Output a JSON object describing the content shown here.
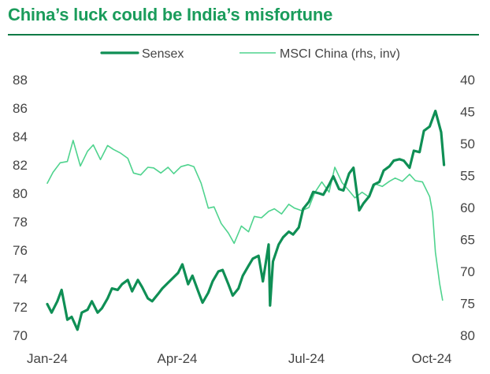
{
  "chart_data": {
    "type": "line",
    "title": "China’s luck could be India’s misfortune",
    "colors": {
      "title": "#1a9c5b",
      "rule": "#0f7a45",
      "sensex": "#0f8f55",
      "msci": "#4fd38e",
      "text": "#444444"
    },
    "x_ticks": [
      "Jan-24",
      "Apr-24",
      "Jul-24",
      "Oct-24"
    ],
    "y_left": {
      "ticks": [
        "70",
        "72",
        "74",
        "76",
        "78",
        "80",
        "82",
        "84",
        "86",
        "88"
      ],
      "ylim": [
        70,
        88
      ]
    },
    "y_right": {
      "ticks": [
        "40",
        "45",
        "50",
        "55",
        "60",
        "65",
        "70",
        "75",
        "80"
      ],
      "ylim": [
        40,
        80
      ],
      "inverted": true
    },
    "legend_position": "top-right",
    "series": [
      {
        "name": "Sensex",
        "axis": "left",
        "x": [
          "2024-01-01",
          "2024-01-04",
          "2024-01-08",
          "2024-01-11",
          "2024-01-15",
          "2024-01-18",
          "2024-01-22",
          "2024-01-25",
          "2024-01-29",
          "2024-02-01",
          "2024-02-05",
          "2024-02-08",
          "2024-02-12",
          "2024-02-15",
          "2024-02-19",
          "2024-02-22",
          "2024-02-26",
          "2024-02-29",
          "2024-03-04",
          "2024-03-07",
          "2024-03-11",
          "2024-03-14",
          "2024-03-18",
          "2024-03-21",
          "2024-03-25",
          "2024-03-28",
          "2024-04-01",
          "2024-04-04",
          "2024-04-08",
          "2024-04-11",
          "2024-04-15",
          "2024-04-18",
          "2024-04-22",
          "2024-04-25",
          "2024-04-29",
          "2024-05-02",
          "2024-05-06",
          "2024-05-09",
          "2024-05-13",
          "2024-05-16",
          "2024-05-20",
          "2024-05-23",
          "2024-05-27",
          "2024-05-30",
          "2024-06-03",
          "2024-06-04",
          "2024-06-06",
          "2024-06-10",
          "2024-06-13",
          "2024-06-17",
          "2024-06-20",
          "2024-06-24",
          "2024-06-27",
          "2024-07-01",
          "2024-07-04",
          "2024-07-08",
          "2024-07-11",
          "2024-07-15",
          "2024-07-18",
          "2024-07-22",
          "2024-07-25",
          "2024-07-29",
          "2024-08-01",
          "2024-08-05",
          "2024-08-08",
          "2024-08-12",
          "2024-08-15",
          "2024-08-19",
          "2024-08-22",
          "2024-08-26",
          "2024-08-29",
          "2024-09-02",
          "2024-09-05",
          "2024-09-09",
          "2024-09-12",
          "2024-09-16",
          "2024-09-19",
          "2024-09-23",
          "2024-09-27",
          "2024-10-01",
          "2024-10-03"
        ],
        "values": [
          72.2,
          71.6,
          72.4,
          73.2,
          71.1,
          71.3,
          70.4,
          71.6,
          71.8,
          72.4,
          71.6,
          71.9,
          72.6,
          73.3,
          73.2,
          73.6,
          73.9,
          73.1,
          73.9,
          73.4,
          72.6,
          72.4,
          72.9,
          73.3,
          73.7,
          74.0,
          74.4,
          75.0,
          73.6,
          74.2,
          73.1,
          72.3,
          73.0,
          73.8,
          74.5,
          74.6,
          73.6,
          72.8,
          73.3,
          74.2,
          74.9,
          75.4,
          75.6,
          73.8,
          76.4,
          72.1,
          75.2,
          76.4,
          76.9,
          77.3,
          77.1,
          77.6,
          78.9,
          79.4,
          80.1,
          80.0,
          79.9,
          80.6,
          81.2,
          80.3,
          80.2,
          81.4,
          81.8,
          78.8,
          79.3,
          79.8,
          80.6,
          80.8,
          81.6,
          81.9,
          82.3,
          82.4,
          82.3,
          81.8,
          83.0,
          82.9,
          84.4,
          84.7,
          85.8,
          84.3,
          82.0
        ]
      },
      {
        "name": "MSCI China (rhs, inv)",
        "axis": "right",
        "x": [
          "2024-01-01",
          "2024-01-05",
          "2024-01-10",
          "2024-01-15",
          "2024-01-19",
          "2024-01-24",
          "2024-01-29",
          "2024-02-02",
          "2024-02-07",
          "2024-02-12",
          "2024-02-16",
          "2024-02-21",
          "2024-02-26",
          "2024-03-01",
          "2024-03-06",
          "2024-03-11",
          "2024-03-15",
          "2024-03-20",
          "2024-03-25",
          "2024-03-29",
          "2024-04-03",
          "2024-04-08",
          "2024-04-12",
          "2024-04-17",
          "2024-04-22",
          "2024-04-26",
          "2024-05-01",
          "2024-05-06",
          "2024-05-10",
          "2024-05-15",
          "2024-05-20",
          "2024-05-24",
          "2024-05-29",
          "2024-06-03",
          "2024-06-07",
          "2024-06-12",
          "2024-06-17",
          "2024-06-21",
          "2024-06-26",
          "2024-07-01",
          "2024-07-05",
          "2024-07-10",
          "2024-07-15",
          "2024-07-19",
          "2024-07-24",
          "2024-07-29",
          "2024-08-02",
          "2024-08-07",
          "2024-08-12",
          "2024-08-16",
          "2024-08-21",
          "2024-08-26",
          "2024-08-30",
          "2024-09-04",
          "2024-09-09",
          "2024-09-13",
          "2024-09-18",
          "2024-09-23",
          "2024-09-25",
          "2024-09-27",
          "2024-09-30",
          "2024-10-02"
        ],
        "values": [
          56.2,
          54.5,
          53.0,
          52.8,
          49.5,
          53.5,
          51.2,
          50.2,
          52.5,
          50.3,
          50.9,
          51.5,
          52.3,
          54.6,
          54.9,
          53.7,
          53.8,
          54.6,
          53.7,
          54.7,
          53.6,
          53.3,
          53.6,
          56.2,
          60.1,
          59.9,
          62.5,
          64.0,
          65.6,
          62.9,
          63.8,
          61.4,
          61.6,
          60.6,
          60.2,
          61.0,
          59.5,
          60.1,
          60.5,
          60.0,
          57.7,
          56.0,
          57.6,
          53.7,
          56.1,
          57.4,
          58.5,
          57.6,
          58.4,
          56.3,
          56.7,
          55.9,
          55.4,
          55.9,
          54.8,
          55.8,
          56.0,
          58.3,
          60.8,
          67.0,
          72.0,
          74.5
        ]
      }
    ]
  }
}
